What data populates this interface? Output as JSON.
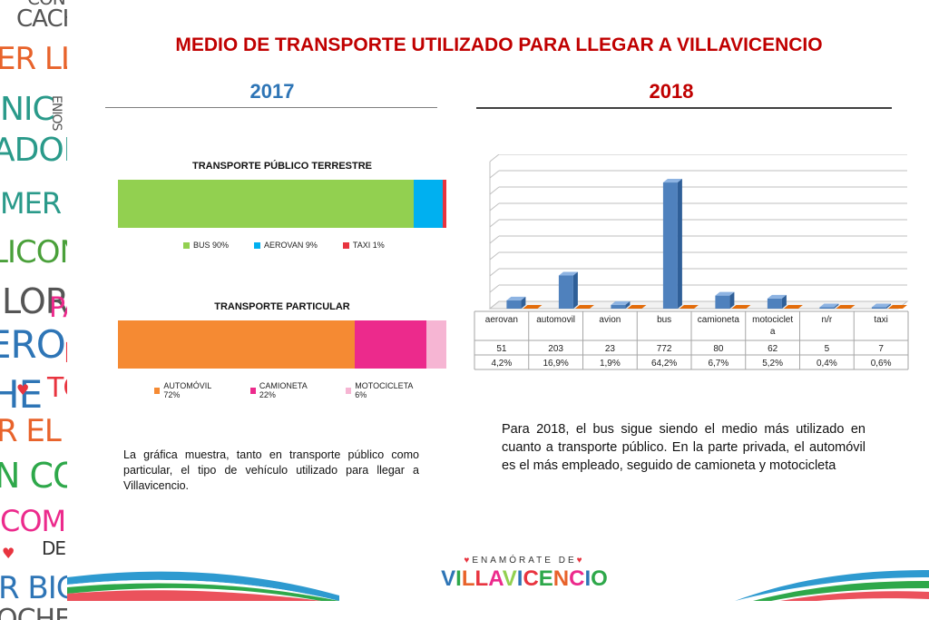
{
  "title": "MEDIO DE TRANSPORTE UTILIZADO PARA LLEGAR A VILLAVICENCIO",
  "year_left": "2017",
  "year_right": "2018",
  "colors": {
    "red": "#c00000",
    "blue": "#2e75b6"
  },
  "left_strip_words": [
    "CON",
    "CACHA",
    "ER LLAN",
    "NIC",
    "ENIOS",
    "ADORE",
    "MER EL F",
    "LICONI",
    "LOR",
    "PA",
    "ERO",
    "I",
    "HE",
    "TO",
    "R EL PARQ",
    "N CON",
    "COMER",
    "DE",
    "R BICIC",
    "OCHE"
  ],
  "chart_data": [
    {
      "type": "bar",
      "orientation": "horizontal-stacked",
      "title": "TRANSPORTE PÚBLICO TERRESTRE",
      "series": [
        {
          "name": "BUS 90%",
          "value": 90,
          "color": "#92d050"
        },
        {
          "name": "AEROVAN 9%",
          "value": 9,
          "color": "#00b0f0"
        },
        {
          "name": "TAXI 1%",
          "value": 1,
          "color": "#e8343f"
        }
      ],
      "legend": "bottom"
    },
    {
      "type": "bar",
      "orientation": "horizontal-stacked",
      "title": "TRANSPORTE PARTICULAR",
      "series": [
        {
          "name": "AUTOMÓVIL 72%",
          "value": 72,
          "color": "#f58a33"
        },
        {
          "name": "CAMIONETA 22%",
          "value": 22,
          "color": "#ec2a8c"
        },
        {
          "name": "MOTOCICLETA 6%",
          "value": 6,
          "color": "#f6b5d3"
        }
      ],
      "legend": "bottom"
    },
    {
      "type": "bar",
      "title": "",
      "categories": [
        "aerovan",
        "automovil",
        "avion",
        "bus",
        "camioneta",
        "motociclet a",
        "n/r",
        "taxi"
      ],
      "series": [
        {
          "values": [
            51,
            203,
            23,
            772,
            80,
            62,
            5,
            7
          ],
          "color": "#4f81bd"
        },
        {
          "values": [
            0,
            0,
            0,
            0,
            0,
            0,
            0,
            0
          ],
          "color": "#e36c0a"
        }
      ],
      "table_rows": [
        [
          "51",
          "203",
          "23",
          "772",
          "80",
          "62",
          "5",
          "7"
        ],
        [
          "4,2%",
          "16,9%",
          "1,9%",
          "64,2%",
          "6,7%",
          "5,2%",
          "0,4%",
          "0,6%"
        ]
      ],
      "ylim": [
        0,
        900
      ],
      "grid": true
    }
  ],
  "paragraph_left": "La gráfica muestra, tanto en transporte público como particular, el tipo de vehículo utilizado para llegar a Villavicencio.",
  "paragraph_right": "Para 2018, el bus sigue siendo el medio más utilizado en cuanto a transporte público. En la parte privada, el automóvil es el más empleado, seguido de camioneta y motocicleta",
  "logo": {
    "top": "ENAMÓRATE DE",
    "main": "VILLAVICENCIO"
  }
}
